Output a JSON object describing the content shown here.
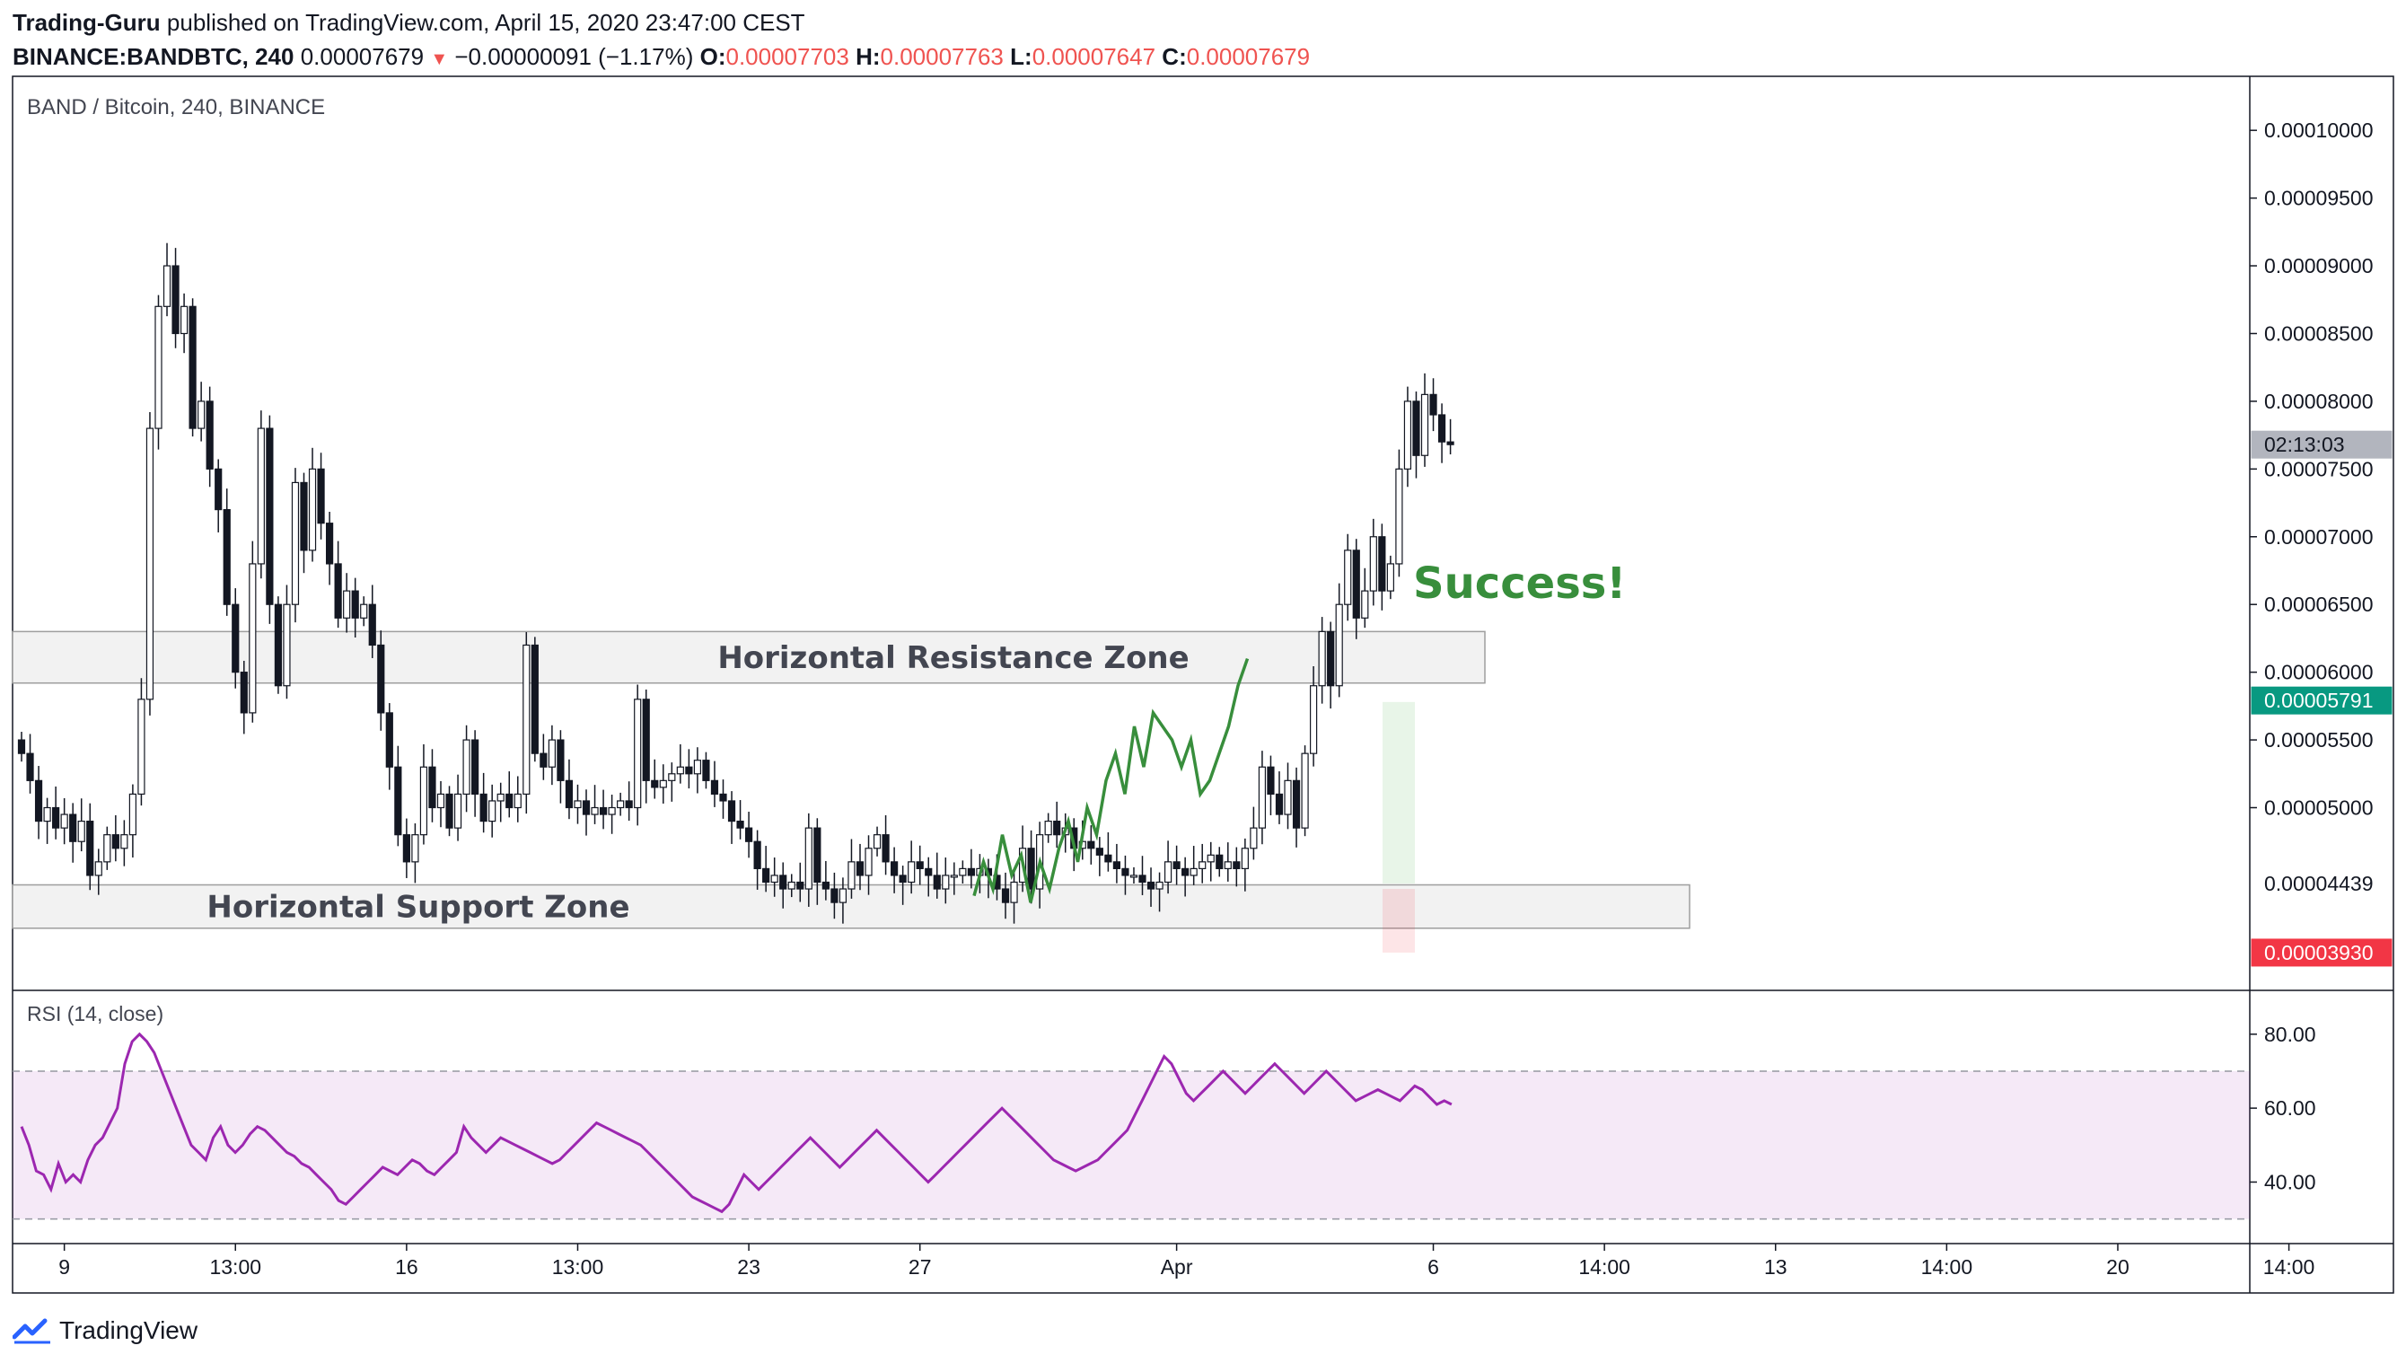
{
  "header": {
    "author": "Trading-Guru",
    "published": "published on TradingView.com, April 15, 2020 23:47:00 CEST",
    "symbol": "BINANCE:BANDBTC, 240",
    "last": "0.00007679",
    "change_arrow": "▼",
    "change": "−0.00000091 (−1.17%)",
    "o_label": "O:",
    "o_value": "0.00007703",
    "h_label": "H:",
    "h_value": "0.00007763",
    "l_label": "L:",
    "l_value": "0.00007647",
    "c_label": "C:",
    "c_value": "0.00007679"
  },
  "footer": {
    "brand": "TradingView",
    "logo_icon": "tradingview-logo-icon"
  },
  "chart_data": [
    {
      "type": "candlestick",
      "title": "BAND / Bitcoin, 240, BINANCE",
      "ylim": [
        3.85e-05,
        0.000102
      ],
      "y_ticks": [
        "0.00010000",
        "0.00009500",
        "0.00009000",
        "0.00008500",
        "0.00008000",
        "0.00007500",
        "0.00007000",
        "0.00006500",
        "0.00006000",
        "0.00005500",
        "0.00005000"
      ],
      "y_tick_values": [
        0.0001,
        9.5e-05,
        9e-05,
        8.5e-05,
        8e-05,
        7.5e-05,
        7e-05,
        6.5e-05,
        6e-05,
        5.5e-05,
        5e-05
      ],
      "x_ticks": [
        "9",
        "13:00",
        "16",
        "13:00",
        "23",
        "27",
        "Apr",
        "6",
        "14:00",
        "13",
        "14:00",
        "20",
        "14:00"
      ],
      "x_tick_index": [
        5,
        25,
        45,
        65,
        85,
        105,
        135,
        165,
        185,
        205,
        225,
        245,
        265
      ],
      "candle_count": 220,
      "price_labels": [
        {
          "text": "02:13:03",
          "value": 7.68e-05,
          "color": "#b2b5be",
          "text_color": "#131722"
        },
        {
          "text": "0.00005791",
          "value": 5.791e-05,
          "color": "#089981",
          "text_color": "#ffffff"
        },
        {
          "text": "0.00004439",
          "value": 4.439e-05,
          "color": "#ffffff",
          "text_color": "#131722"
        },
        {
          "text": "0.00003930",
          "value": 3.93e-05,
          "color": "#f23645",
          "text_color": "#ffffff"
        }
      ],
      "annotations": {
        "resistance_label": "Horizontal Resistance Zone",
        "resistance_zone": [
          5.92e-05,
          6.3e-05
        ],
        "support_label": "Horizontal Support Zone",
        "support_zone": [
          4.11e-05,
          4.43e-05
        ],
        "success_label": "Success!",
        "success_color": "#388e3c",
        "target_zone": [
          4.44e-05,
          5.78e-05
        ],
        "stop_zone": [
          3.93e-05,
          4.4e-05
        ]
      },
      "candles": [
        {
          "o": 5.5,
          "c": 5.4
        },
        {
          "o": 5.4,
          "c": 5.2
        },
        {
          "o": 5.2,
          "c": 4.9
        },
        {
          "o": 4.9,
          "c": 5.0
        },
        {
          "o": 5.0,
          "c": 4.85
        },
        {
          "o": 4.85,
          "c": 4.95
        },
        {
          "o": 4.95,
          "c": 4.75
        },
        {
          "o": 4.75,
          "c": 4.9
        },
        {
          "o": 4.9,
          "c": 4.5
        },
        {
          "o": 4.5,
          "c": 4.6
        },
        {
          "o": 4.6,
          "c": 4.8
        },
        {
          "o": 4.8,
          "c": 4.7
        },
        {
          "o": 4.7,
          "c": 4.8
        },
        {
          "o": 4.8,
          "c": 5.1
        },
        {
          "o": 5.1,
          "c": 5.8
        },
        {
          "o": 5.8,
          "c": 7.8
        },
        {
          "o": 7.8,
          "c": 8.7
        },
        {
          "o": 8.7,
          "c": 9.0
        },
        {
          "o": 9.0,
          "c": 8.5
        },
        {
          "o": 8.5,
          "c": 8.7
        },
        {
          "o": 8.7,
          "c": 7.8
        },
        {
          "o": 7.8,
          "c": 8.0
        },
        {
          "o": 8.0,
          "c": 7.5
        },
        {
          "o": 7.5,
          "c": 7.2
        },
        {
          "o": 7.2,
          "c": 6.5
        },
        {
          "o": 6.5,
          "c": 6.0
        },
        {
          "o": 6.0,
          "c": 5.7
        },
        {
          "o": 5.7,
          "c": 6.8
        },
        {
          "o": 6.8,
          "c": 7.8
        },
        {
          "o": 7.8,
          "c": 6.5
        },
        {
          "o": 6.5,
          "c": 5.9
        },
        {
          "o": 5.9,
          "c": 6.5
        },
        {
          "o": 6.5,
          "c": 7.4
        },
        {
          "o": 7.4,
          "c": 6.9
        },
        {
          "o": 6.9,
          "c": 7.5
        },
        {
          "o": 7.5,
          "c": 7.1
        },
        {
          "o": 7.1,
          "c": 6.8
        },
        {
          "o": 6.8,
          "c": 6.4
        },
        {
          "o": 6.4,
          "c": 6.6
        },
        {
          "o": 6.6,
          "c": 6.4
        },
        {
          "o": 6.4,
          "c": 6.5
        },
        {
          "o": 6.5,
          "c": 6.2
        },
        {
          "o": 6.2,
          "c": 5.7
        },
        {
          "o": 5.7,
          "c": 5.3
        },
        {
          "o": 5.3,
          "c": 4.8
        },
        {
          "o": 4.8,
          "c": 4.6
        },
        {
          "o": 4.6,
          "c": 4.8
        },
        {
          "o": 4.8,
          "c": 5.3
        },
        {
          "o": 5.3,
          "c": 5.0
        },
        {
          "o": 5.0,
          "c": 5.1
        },
        {
          "o": 5.1,
          "c": 4.85
        },
        {
          "o": 4.85,
          "c": 5.1
        },
        {
          "o": 5.1,
          "c": 5.5
        },
        {
          "o": 5.5,
          "c": 5.1
        },
        {
          "o": 5.1,
          "c": 4.9
        },
        {
          "o": 4.9,
          "c": 5.05
        },
        {
          "o": 5.05,
          "c": 5.1
        },
        {
          "o": 5.1,
          "c": 5.0
        },
        {
          "o": 5.0,
          "c": 5.1
        },
        {
          "o": 5.1,
          "c": 6.2
        },
        {
          "o": 6.2,
          "c": 5.4
        },
        {
          "o": 5.4,
          "c": 5.3
        },
        {
          "o": 5.3,
          "c": 5.5
        },
        {
          "o": 5.5,
          "c": 5.2
        },
        {
          "o": 5.2,
          "c": 5.0
        },
        {
          "o": 5.0,
          "c": 5.05
        },
        {
          "o": 5.05,
          "c": 4.95
        },
        {
          "o": 4.95,
          "c": 5.0
        },
        {
          "o": 5.0,
          "c": 4.95
        },
        {
          "o": 4.95,
          "c": 5.0
        },
        {
          "o": 5.0,
          "c": 5.05
        },
        {
          "o": 5.05,
          "c": 5.0
        },
        {
          "o": 5.0,
          "c": 5.8
        },
        {
          "o": 5.8,
          "c": 5.2
        },
        {
          "o": 5.2,
          "c": 5.15
        },
        {
          "o": 5.15,
          "c": 5.2
        },
        {
          "o": 5.2,
          "c": 5.25
        },
        {
          "o": 5.25,
          "c": 5.3
        },
        {
          "o": 5.3,
          "c": 5.25
        },
        {
          "o": 5.25,
          "c": 5.35
        },
        {
          "o": 5.35,
          "c": 5.2
        },
        {
          "o": 5.2,
          "c": 5.1
        },
        {
          "o": 5.1,
          "c": 5.05
        },
        {
          "o": 5.05,
          "c": 4.9
        },
        {
          "o": 4.9,
          "c": 4.85
        },
        {
          "o": 4.85,
          "c": 4.75
        },
        {
          "o": 4.75,
          "c": 4.55
        },
        {
          "o": 4.55,
          "c": 4.45
        },
        {
          "o": 4.45,
          "c": 4.5
        },
        {
          "o": 4.5,
          "c": 4.4
        },
        {
          "o": 4.4,
          "c": 4.45
        },
        {
          "o": 4.45,
          "c": 4.4
        },
        {
          "o": 4.4,
          "c": 4.85
        },
        {
          "o": 4.85,
          "c": 4.45
        },
        {
          "o": 4.45,
          "c": 4.4
        },
        {
          "o": 4.4,
          "c": 4.3
        },
        {
          "o": 4.3,
          "c": 4.4
        },
        {
          "o": 4.4,
          "c": 4.6
        },
        {
          "o": 4.6,
          "c": 4.5
        },
        {
          "o": 4.5,
          "c": 4.7
        },
        {
          "o": 4.7,
          "c": 4.8
        },
        {
          "o": 4.8,
          "c": 4.6
        },
        {
          "o": 4.6,
          "c": 4.5
        },
        {
          "o": 4.5,
          "c": 4.45
        },
        {
          "o": 4.45,
          "c": 4.6
        },
        {
          "o": 4.6,
          "c": 4.55
        },
        {
          "o": 4.55,
          "c": 4.5
        },
        {
          "o": 4.5,
          "c": 4.4
        },
        {
          "o": 4.4,
          "c": 4.5
        },
        {
          "o": 4.5,
          "c": 4.5
        },
        {
          "o": 4.5,
          "c": 4.55
        },
        {
          "o": 4.55,
          "c": 4.5
        },
        {
          "o": 4.5,
          "c": 4.55
        },
        {
          "o": 4.55,
          "c": 4.5
        },
        {
          "o": 4.5,
          "c": 4.4
        },
        {
          "o": 4.4,
          "c": 4.3
        },
        {
          "o": 4.3,
          "c": 4.45
        },
        {
          "o": 4.45,
          "c": 4.7
        },
        {
          "o": 4.7,
          "c": 4.4
        },
        {
          "o": 4.4,
          "c": 4.8
        },
        {
          "o": 4.8,
          "c": 4.9
        },
        {
          "o": 4.9,
          "c": 4.8
        },
        {
          "o": 4.8,
          "c": 4.85
        },
        {
          "o": 4.85,
          "c": 4.7
        },
        {
          "o": 4.7,
          "c": 4.75
        },
        {
          "o": 4.75,
          "c": 4.7
        },
        {
          "o": 4.7,
          "c": 4.65
        },
        {
          "o": 4.65,
          "c": 4.6
        },
        {
          "o": 4.6,
          "c": 4.55
        },
        {
          "o": 4.55,
          "c": 4.5
        },
        {
          "o": 4.5,
          "c": 4.5
        },
        {
          "o": 4.5,
          "c": 4.45
        },
        {
          "o": 4.45,
          "c": 4.4
        },
        {
          "o": 4.4,
          "c": 4.45
        },
        {
          "o": 4.45,
          "c": 4.6
        },
        {
          "o": 4.6,
          "c": 4.55
        },
        {
          "o": 4.55,
          "c": 4.5
        },
        {
          "o": 4.5,
          "c": 4.55
        },
        {
          "o": 4.55,
          "c": 4.6
        },
        {
          "o": 4.6,
          "c": 4.65
        },
        {
          "o": 4.65,
          "c": 4.55
        },
        {
          "o": 4.55,
          "c": 4.6
        },
        {
          "o": 4.6,
          "c": 4.55
        },
        {
          "o": 4.55,
          "c": 4.7
        },
        {
          "o": 4.7,
          "c": 4.85
        },
        {
          "o": 4.85,
          "c": 5.3
        },
        {
          "o": 5.3,
          "c": 5.1
        },
        {
          "o": 5.1,
          "c": 4.95
        },
        {
          "o": 4.95,
          "c": 5.2
        },
        {
          "o": 5.2,
          "c": 4.85
        },
        {
          "o": 4.85,
          "c": 5.4
        },
        {
          "o": 5.4,
          "c": 5.9
        },
        {
          "o": 5.9,
          "c": 6.3
        },
        {
          "o": 6.3,
          "c": 5.9
        },
        {
          "o": 5.9,
          "c": 6.5
        },
        {
          "o": 6.5,
          "c": 6.9
        },
        {
          "o": 6.9,
          "c": 6.4
        },
        {
          "o": 6.4,
          "c": 6.6
        },
        {
          "o": 6.6,
          "c": 7.0
        },
        {
          "o": 7.0,
          "c": 6.6
        },
        {
          "o": 6.6,
          "c": 6.8
        },
        {
          "o": 6.8,
          "c": 7.5
        },
        {
          "o": 7.5,
          "c": 8.0
        },
        {
          "o": 8.0,
          "c": 7.6
        },
        {
          "o": 7.6,
          "c": 8.05
        },
        {
          "o": 8.05,
          "c": 7.9
        },
        {
          "o": 7.9,
          "c": 7.7
        },
        {
          "o": 7.7,
          "c": 7.68
        }
      ],
      "green_path": [
        4.35,
        4.6,
        4.4,
        4.8,
        4.5,
        4.65,
        4.3,
        4.6,
        4.4,
        4.7,
        4.9,
        4.6,
        5.0,
        4.8,
        5.2,
        5.4,
        5.1,
        5.6,
        5.3,
        5.7,
        5.6,
        5.5,
        5.3,
        5.5,
        5.1,
        5.2,
        5.4,
        5.6,
        5.9,
        6.1
      ]
    },
    {
      "type": "line",
      "title": "RSI (14, close)",
      "ylim": [
        27,
        87
      ],
      "y_ticks": [
        "80.00",
        "60.00",
        "40.00"
      ],
      "y_tick_values": [
        80,
        60,
        40
      ],
      "band": [
        30,
        70
      ],
      "color": "#9c27b0",
      "values": [
        55,
        50,
        43,
        42,
        38,
        45,
        40,
        42,
        40,
        46,
        50,
        52,
        56,
        60,
        72,
        78,
        80,
        78,
        75,
        70,
        65,
        60,
        55,
        50,
        48,
        46,
        52,
        55,
        50,
        48,
        50,
        53,
        55,
        54,
        52,
        50,
        48,
        47,
        45,
        44,
        42,
        40,
        38,
        35,
        34,
        36,
        38,
        40,
        42,
        44,
        43,
        42,
        44,
        46,
        45,
        43,
        42,
        44,
        46,
        48,
        55,
        52,
        50,
        48,
        50,
        52,
        51,
        50,
        49,
        48,
        47,
        46,
        45,
        46,
        48,
        50,
        52,
        54,
        56,
        55,
        54,
        53,
        52,
        51,
        50,
        48,
        46,
        44,
        42,
        40,
        38,
        36,
        35,
        34,
        33,
        32,
        34,
        38,
        42,
        40,
        38,
        40,
        42,
        44,
        46,
        48,
        50,
        52,
        50,
        48,
        46,
        44,
        46,
        48,
        50,
        52,
        54,
        52,
        50,
        48,
        46,
        44,
        42,
        40,
        42,
        44,
        46,
        48,
        50,
        52,
        54,
        56,
        58,
        60,
        58,
        56,
        54,
        52,
        50,
        48,
        46,
        45,
        44,
        43,
        44,
        45,
        46,
        48,
        50,
        52,
        54,
        58,
        62,
        66,
        70,
        74,
        72,
        68,
        64,
        62,
        64,
        66,
        68,
        70,
        68,
        66,
        64,
        66,
        68,
        70,
        72,
        70,
        68,
        66,
        64,
        66,
        68,
        70,
        68,
        66,
        64,
        62,
        63,
        64,
        65,
        64,
        63,
        62,
        64,
        66,
        65,
        63,
        61,
        62,
        61
      ]
    }
  ]
}
